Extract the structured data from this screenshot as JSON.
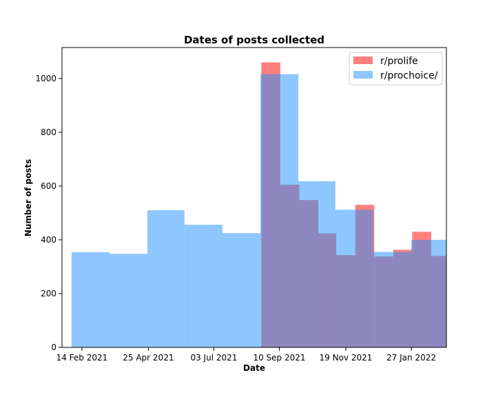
{
  "chart_data": {
    "type": "bar",
    "title": "Dates of posts collected",
    "xlabel": "Date",
    "ylabel": "Number of posts",
    "x_ticks": [
      "2021-02-14",
      "2021-04-25",
      "2021-07-03",
      "2021-09-10",
      "2021-11-19",
      "2022-01-27"
    ],
    "x_tick_labels": [
      "14 Feb 2021",
      "25 Apr 2021",
      "03 Jul 2021",
      "10 Sep 2021",
      "19 Nov 2021",
      "27 Jan 2022"
    ],
    "xlim": [
      "2021-01-24",
      "2022-03-05"
    ],
    "ylim": [
      0,
      1115
    ],
    "y_ticks": [
      0,
      200,
      400,
      600,
      800,
      1000
    ],
    "grid": false,
    "legend_position": "top-right",
    "series": [
      {
        "name": "r/prolife",
        "color": "#ff0000",
        "opacity": 0.5,
        "bins": [
          {
            "start": "2021-08-22",
            "end": "2021-09-11",
            "value": 1060
          },
          {
            "start": "2021-09-11",
            "end": "2021-10-01",
            "value": 605
          },
          {
            "start": "2021-10-01",
            "end": "2021-10-21",
            "value": 548
          },
          {
            "start": "2021-10-21",
            "end": "2021-11-09",
            "value": 424
          },
          {
            "start": "2021-11-09",
            "end": "2021-11-29",
            "value": 343
          },
          {
            "start": "2021-11-29",
            "end": "2021-12-19",
            "value": 530
          },
          {
            "start": "2021-12-19",
            "end": "2022-01-08",
            "value": 338
          },
          {
            "start": "2022-01-08",
            "end": "2022-01-28",
            "value": 363
          },
          {
            "start": "2022-01-28",
            "end": "2022-02-17",
            "value": 430
          },
          {
            "start": "2022-02-17",
            "end": "2022-03-09",
            "value": 340
          }
        ]
      },
      {
        "name": "r/prochoice/",
        "color": "#1e90ff",
        "opacity": 0.5,
        "bins": [
          {
            "start": "2021-02-03",
            "end": "2021-03-15",
            "value": 354
          },
          {
            "start": "2021-03-15",
            "end": "2021-04-24",
            "value": 348
          },
          {
            "start": "2021-04-24",
            "end": "2021-06-02",
            "value": 510
          },
          {
            "start": "2021-06-02",
            "end": "2021-07-12",
            "value": 456
          },
          {
            "start": "2021-07-12",
            "end": "2021-08-21",
            "value": 425
          },
          {
            "start": "2021-08-21",
            "end": "2021-09-30",
            "value": 1016
          },
          {
            "start": "2021-09-30",
            "end": "2021-11-08",
            "value": 618
          },
          {
            "start": "2021-11-08",
            "end": "2021-12-18",
            "value": 512
          },
          {
            "start": "2021-12-18",
            "end": "2022-01-27",
            "value": 355
          },
          {
            "start": "2022-01-27",
            "end": "2022-03-08",
            "value": 400
          }
        ]
      }
    ]
  }
}
